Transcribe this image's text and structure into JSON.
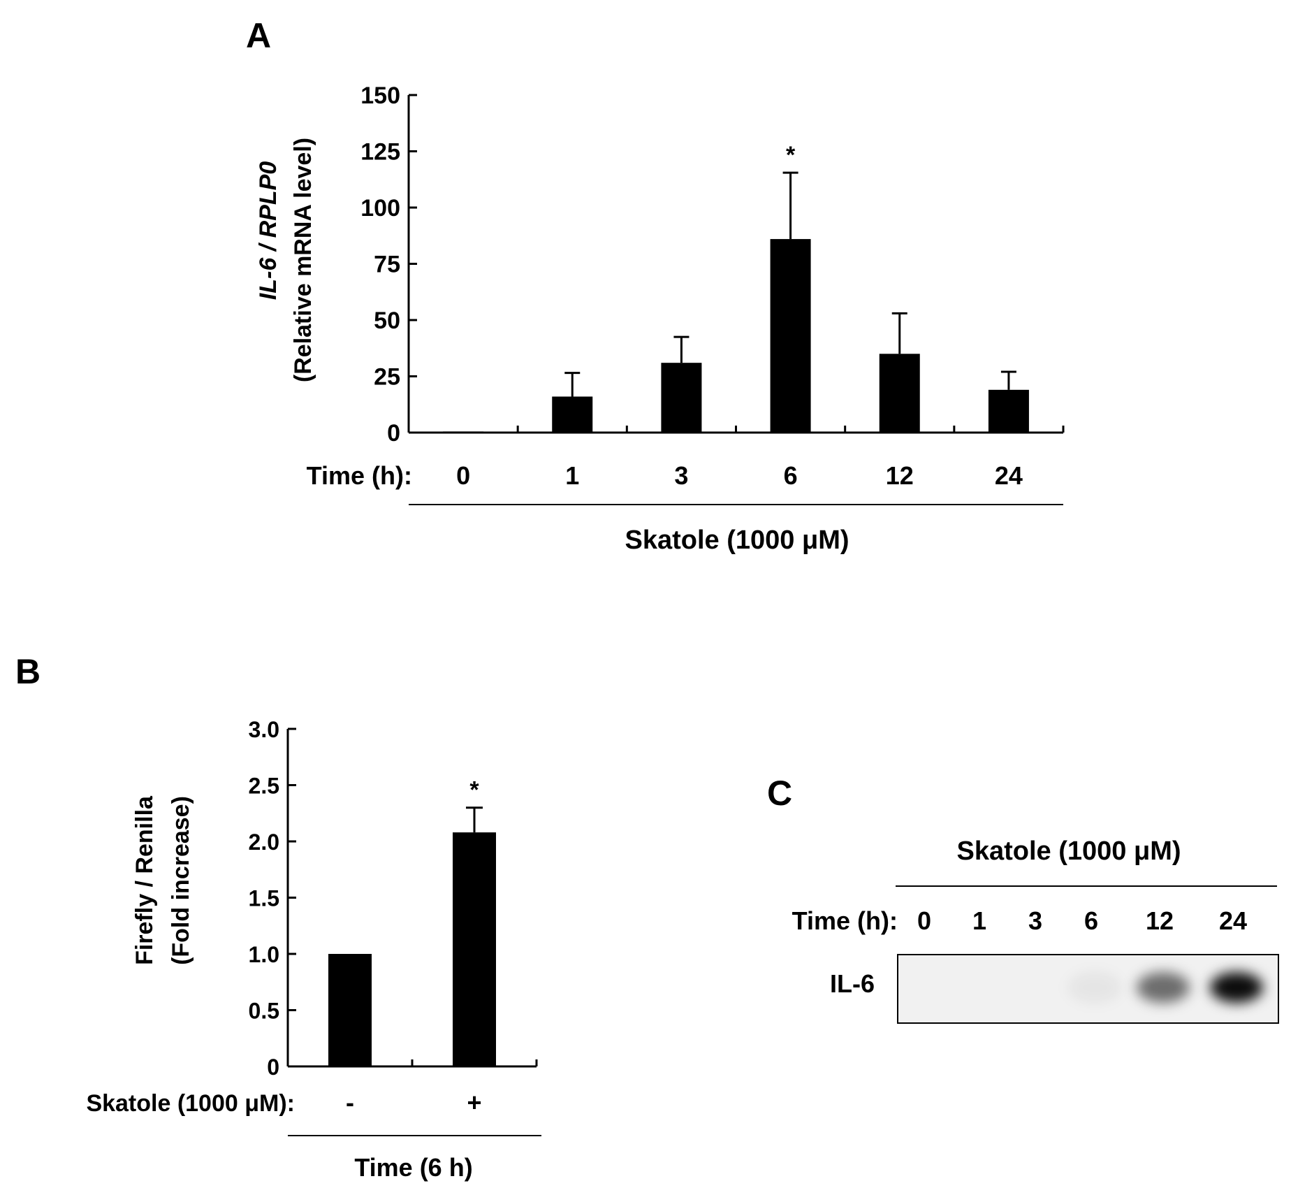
{
  "chart_data": [
    {
      "panel": "A",
      "type": "bar",
      "ylabel_italic": "IL-6 / RPLP0",
      "ylabel_sub": "(Relative mRNA level)",
      "ylim": [
        0,
        150
      ],
      "yticks": [
        "0",
        "25",
        "50",
        "75",
        "100",
        "125",
        "150"
      ],
      "ytick_values": [
        0,
        25,
        50,
        75,
        100,
        125,
        150
      ],
      "xprefix": "Time (h):",
      "categories": [
        "0",
        "1",
        "3",
        "6",
        "12",
        "24"
      ],
      "values": [
        0.5,
        16,
        31,
        86,
        35,
        19
      ],
      "errors": [
        0,
        10.5,
        11.5,
        29.5,
        18,
        8
      ],
      "significance": [
        "",
        "",
        "",
        "*",
        "",
        ""
      ],
      "group_label": "Skatole (1000 μM)"
    },
    {
      "panel": "B",
      "type": "bar",
      "ylabel": "Firefly / Renilla",
      "ylabel_sub": "(Fold increase)",
      "ylim": [
        0,
        3
      ],
      "yticks": [
        "0",
        "0.5",
        "1.0",
        "1.5",
        "2.0",
        "2.5",
        "3.0"
      ],
      "ytick_values": [
        0,
        0.5,
        1.0,
        1.5,
        2.0,
        2.5,
        3.0
      ],
      "xprefix": "Skatole (1000 μM):",
      "categories": [
        "-",
        "+"
      ],
      "values": [
        1.0,
        2.08
      ],
      "errors": [
        0,
        0.22
      ],
      "significance": [
        "",
        "*"
      ],
      "group_label": "Time (6 h)"
    }
  ],
  "blot": {
    "panel": "C",
    "treatment": "Skatole (1000 μM)",
    "time_prefix": "Time (h):",
    "lanes": [
      "0",
      "1",
      "3",
      "6",
      "12",
      "24"
    ],
    "band_label": "IL-6",
    "band_intensity": [
      0,
      0,
      0,
      0.05,
      0.55,
      0.95
    ]
  }
}
